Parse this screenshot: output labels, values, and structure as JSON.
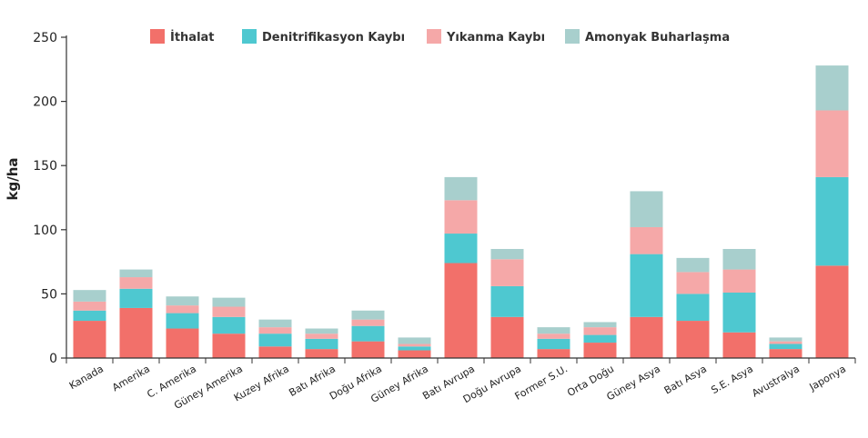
{
  "chart_data": {
    "type": "bar",
    "stacked": true,
    "ylabel": "kg/ha",
    "xlabel": "",
    "ylim": [
      0,
      250
    ],
    "yticks": [
      0,
      50,
      100,
      150,
      200,
      250
    ],
    "grid": false,
    "legend_position": "top",
    "categories": [
      "Kanada",
      "Amerika",
      "C. Amerika",
      "Güney Amerika",
      "Kuzey Afrika",
      "Batı Afrika",
      "Doğu Afrika",
      "Güney Afrika",
      "Batı Avrupa",
      "Doğu Avrupa",
      "Former S.U.",
      "Orta Doğu",
      "Güney Asya",
      "Batı Asya",
      "S.E. Asya",
      "Avustralya",
      "Japonya"
    ],
    "series": [
      {
        "name": "İthalat",
        "color": "#f2706a",
        "values": [
          29,
          39,
          23,
          19,
          9,
          7,
          13,
          6,
          74,
          32,
          7,
          12,
          32,
          29,
          20,
          7,
          72
        ]
      },
      {
        "name": "Denitrifikasyon Kaybı",
        "color": "#4ec8d0",
        "values": [
          8,
          15,
          12,
          13,
          10,
          8,
          12,
          3,
          23,
          24,
          8,
          6,
          49,
          21,
          31,
          4,
          69
        ]
      },
      {
        "name": "Yıkanma Kaybı",
        "color": "#f5a8a8",
        "values": [
          7,
          9,
          6,
          8,
          5,
          4,
          5,
          2,
          26,
          21,
          4,
          6,
          21,
          17,
          18,
          2,
          52
        ]
      },
      {
        "name": "Amonyak Buharlaşma",
        "color": "#a8cfcd",
        "values": [
          9,
          6,
          7,
          7,
          6,
          4,
          7,
          5,
          18,
          8,
          5,
          4,
          28,
          11,
          16,
          3,
          35
        ]
      }
    ]
  }
}
